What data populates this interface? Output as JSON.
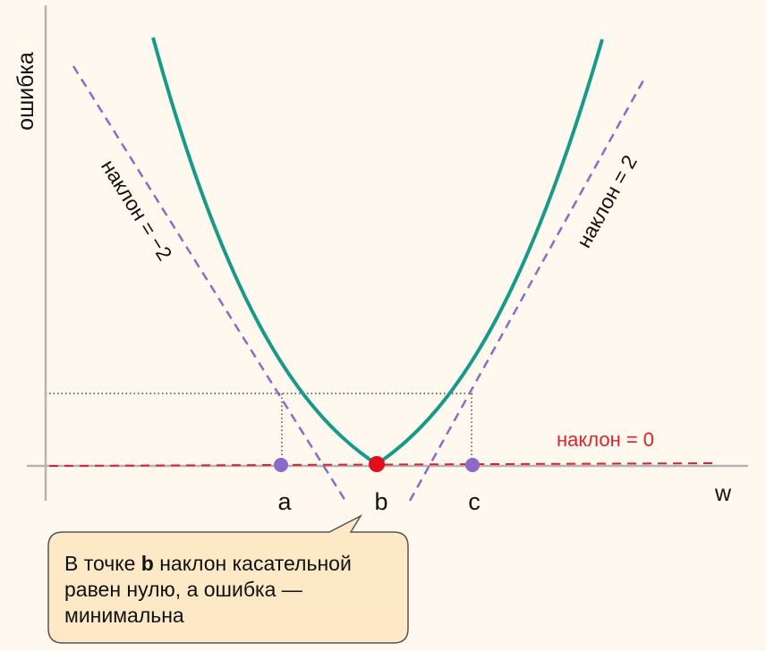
{
  "axes": {
    "y_label": "ошибка",
    "x_label": "w"
  },
  "tangents": {
    "left_label": "наклон = −2",
    "right_label": "наклон = 2",
    "bottom_label": "наклон = 0"
  },
  "points": {
    "a": "a",
    "b": "b",
    "c": "c"
  },
  "callout": {
    "prefix": "В точке ",
    "bold": "b",
    "suffix": " наклон касательной равен нулю, а ошибка — минимальна"
  },
  "colors": {
    "curve": "#189a8a",
    "tangent": "#8a6bc9",
    "zero_tangent": "#e0202a",
    "point_side": "#8a6bc9",
    "point_min": "#e0101a",
    "callout_fill": "#fde9c6",
    "callout_stroke": "#555555"
  }
}
